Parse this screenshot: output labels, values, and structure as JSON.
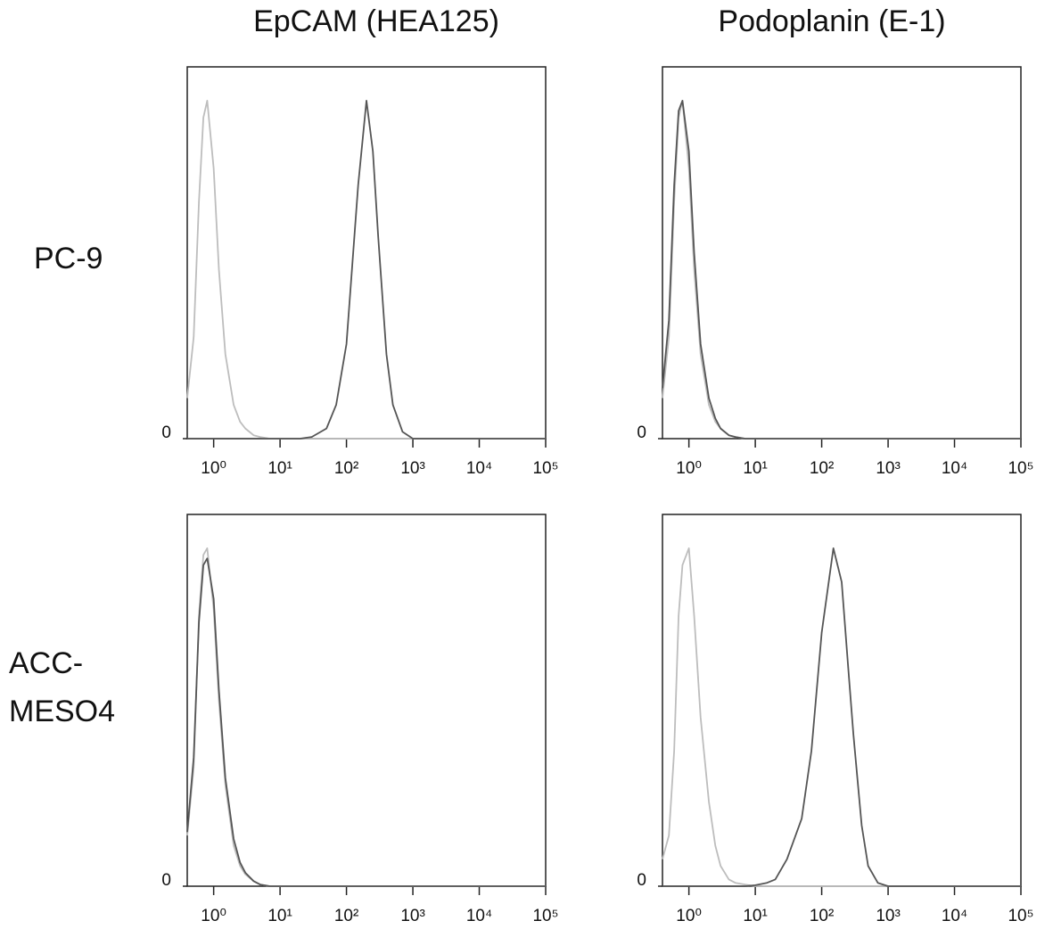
{
  "figure": {
    "column_titles": [
      "EpCAM (HEA125)",
      "Podoplanin (E-1)"
    ],
    "row_labels": [
      [
        "PC-9"
      ],
      [
        "ACC-",
        "MESO4"
      ]
    ]
  },
  "chart_data": [
    {
      "type": "line",
      "xscale": "log",
      "xlim": [
        0.4,
        100000
      ],
      "ylim": [
        0,
        110
      ],
      "xticks": [
        {
          "value": 1,
          "label": "10⁰"
        },
        {
          "value": 10,
          "label": "10¹"
        },
        {
          "value": 100,
          "label": "10²"
        },
        {
          "value": 1000,
          "label": "10³"
        },
        {
          "value": 10000,
          "label": "10⁴"
        },
        {
          "value": 100000,
          "label": "10⁵"
        }
      ],
      "yticks": [
        0
      ],
      "x": [
        0.4,
        0.5,
        0.6,
        0.7,
        0.8,
        1,
        1.2,
        1.5,
        2,
        2.5,
        3,
        4,
        5,
        7,
        10,
        15,
        20,
        30,
        50,
        70,
        100,
        150,
        200,
        250,
        300,
        400,
        500,
        700,
        1000,
        2000,
        5000,
        10000,
        100000
      ],
      "series": [
        {
          "color": "#bdbdbd",
          "values": [
            12,
            30,
            70,
            95,
            100,
            80,
            50,
            25,
            10,
            5,
            3,
            1,
            0.5,
            0,
            0,
            0,
            0,
            0,
            0,
            0,
            0,
            0,
            0,
            0,
            0,
            0,
            0,
            0,
            0,
            0,
            0,
            0,
            0
          ]
        },
        {
          "color": "#555555",
          "values": [
            0,
            0,
            0,
            0,
            0,
            0,
            0,
            0,
            0,
            0,
            0,
            0,
            0,
            0,
            0,
            0,
            0,
            0.5,
            3,
            10,
            28,
            75,
            100,
            85,
            60,
            25,
            10,
            2,
            0,
            0,
            0,
            0,
            0
          ]
        }
      ]
    },
    {
      "type": "line",
      "xscale": "log",
      "xlim": [
        0.4,
        100000
      ],
      "ylim": [
        0,
        110
      ],
      "xticks": [
        {
          "value": 1,
          "label": "10⁰"
        },
        {
          "value": 10,
          "label": "10¹"
        },
        {
          "value": 100,
          "label": "10²"
        },
        {
          "value": 1000,
          "label": "10³"
        },
        {
          "value": 10000,
          "label": "10⁴"
        },
        {
          "value": 100000,
          "label": "10⁵"
        }
      ],
      "yticks": [
        0
      ],
      "x": [
        0.4,
        0.5,
        0.6,
        0.7,
        0.8,
        1,
        1.2,
        1.5,
        2,
        2.5,
        3,
        4,
        5,
        7,
        10,
        15,
        20,
        30,
        50,
        70,
        100,
        150,
        200,
        250,
        300,
        400,
        500,
        700,
        1000,
        2000,
        5000,
        10000,
        100000
      ],
      "series": [
        {
          "color": "#bdbdbd",
          "values": [
            12,
            30,
            70,
            95,
            100,
            80,
            50,
            25,
            10,
            5,
            3,
            1,
            0.5,
            0,
            0,
            0,
            0,
            0,
            0,
            0,
            0,
            0,
            0,
            0,
            0,
            0,
            0,
            0,
            0,
            0,
            0,
            0,
            0
          ]
        },
        {
          "color": "#555555",
          "values": [
            15,
            35,
            75,
            97,
            100,
            85,
            55,
            28,
            12,
            6,
            3,
            1,
            0.5,
            0,
            0,
            0,
            0,
            0,
            0,
            0,
            0,
            0,
            0,
            0,
            0,
            0,
            0,
            0,
            0,
            0,
            0,
            0,
            0
          ]
        }
      ]
    },
    {
      "type": "line",
      "xscale": "log",
      "xlim": [
        0.4,
        100000
      ],
      "ylim": [
        0,
        110
      ],
      "xticks": [
        {
          "value": 1,
          "label": "10⁰"
        },
        {
          "value": 10,
          "label": "10¹"
        },
        {
          "value": 100,
          "label": "10²"
        },
        {
          "value": 1000,
          "label": "10³"
        },
        {
          "value": 10000,
          "label": "10⁴"
        },
        {
          "value": 100000,
          "label": "10⁵"
        }
      ],
      "yticks": [
        0
      ],
      "x": [
        0.4,
        0.5,
        0.6,
        0.7,
        0.8,
        1,
        1.2,
        1.5,
        2,
        2.5,
        3,
        4,
        5,
        7,
        10,
        15,
        20,
        30,
        50,
        70,
        100,
        150,
        200,
        250,
        300,
        400,
        500,
        700,
        1000,
        2000,
        5000,
        10000,
        100000
      ],
      "series": [
        {
          "color": "#bdbdbd",
          "values": [
            15,
            35,
            80,
            98,
            100,
            82,
            55,
            30,
            12,
            6,
            3.5,
            1.5,
            0.5,
            0,
            0,
            0,
            0,
            0,
            0,
            0,
            0,
            0,
            0,
            0,
            0,
            0,
            0,
            0,
            0,
            0,
            0,
            0,
            0
          ]
        },
        {
          "color": "#555555",
          "values": [
            16,
            38,
            78,
            95,
            97,
            85,
            58,
            32,
            14,
            7,
            4,
            1.5,
            0.5,
            0,
            0,
            0,
            0,
            0,
            0,
            0,
            0,
            0,
            0,
            0,
            0,
            0,
            0,
            0,
            0,
            0,
            0,
            0,
            0
          ]
        }
      ]
    },
    {
      "type": "line",
      "xscale": "log",
      "xlim": [
        0.4,
        100000
      ],
      "ylim": [
        0,
        110
      ],
      "xticks": [
        {
          "value": 1,
          "label": "10⁰"
        },
        {
          "value": 10,
          "label": "10¹"
        },
        {
          "value": 100,
          "label": "10²"
        },
        {
          "value": 1000,
          "label": "10³"
        },
        {
          "value": 10000,
          "label": "10⁴"
        },
        {
          "value": 100000,
          "label": "10⁵"
        }
      ],
      "yticks": [
        0
      ],
      "x": [
        0.4,
        0.5,
        0.6,
        0.7,
        0.8,
        1,
        1.2,
        1.5,
        2,
        2.5,
        3,
        4,
        5,
        7,
        10,
        15,
        20,
        30,
        50,
        70,
        100,
        150,
        200,
        250,
        300,
        400,
        500,
        700,
        1000,
        2000,
        5000,
        10000,
        100000
      ],
      "series": [
        {
          "color": "#bdbdbd",
          "values": [
            8,
            15,
            40,
            80,
            95,
            100,
            80,
            50,
            25,
            12,
            6,
            2,
            1,
            0.5,
            0,
            0,
            0,
            0,
            0,
            0,
            0,
            0,
            0,
            0,
            0,
            0,
            0,
            0,
            0,
            0,
            0,
            0,
            0
          ]
        },
        {
          "color": "#555555",
          "values": [
            0,
            0,
            0,
            0,
            0,
            0,
            0,
            0,
            0,
            0,
            0,
            0,
            0,
            0,
            0.3,
            1,
            2,
            8,
            20,
            40,
            75,
            100,
            90,
            65,
            45,
            18,
            6,
            1,
            0,
            0,
            0,
            0,
            0
          ]
        }
      ]
    }
  ]
}
